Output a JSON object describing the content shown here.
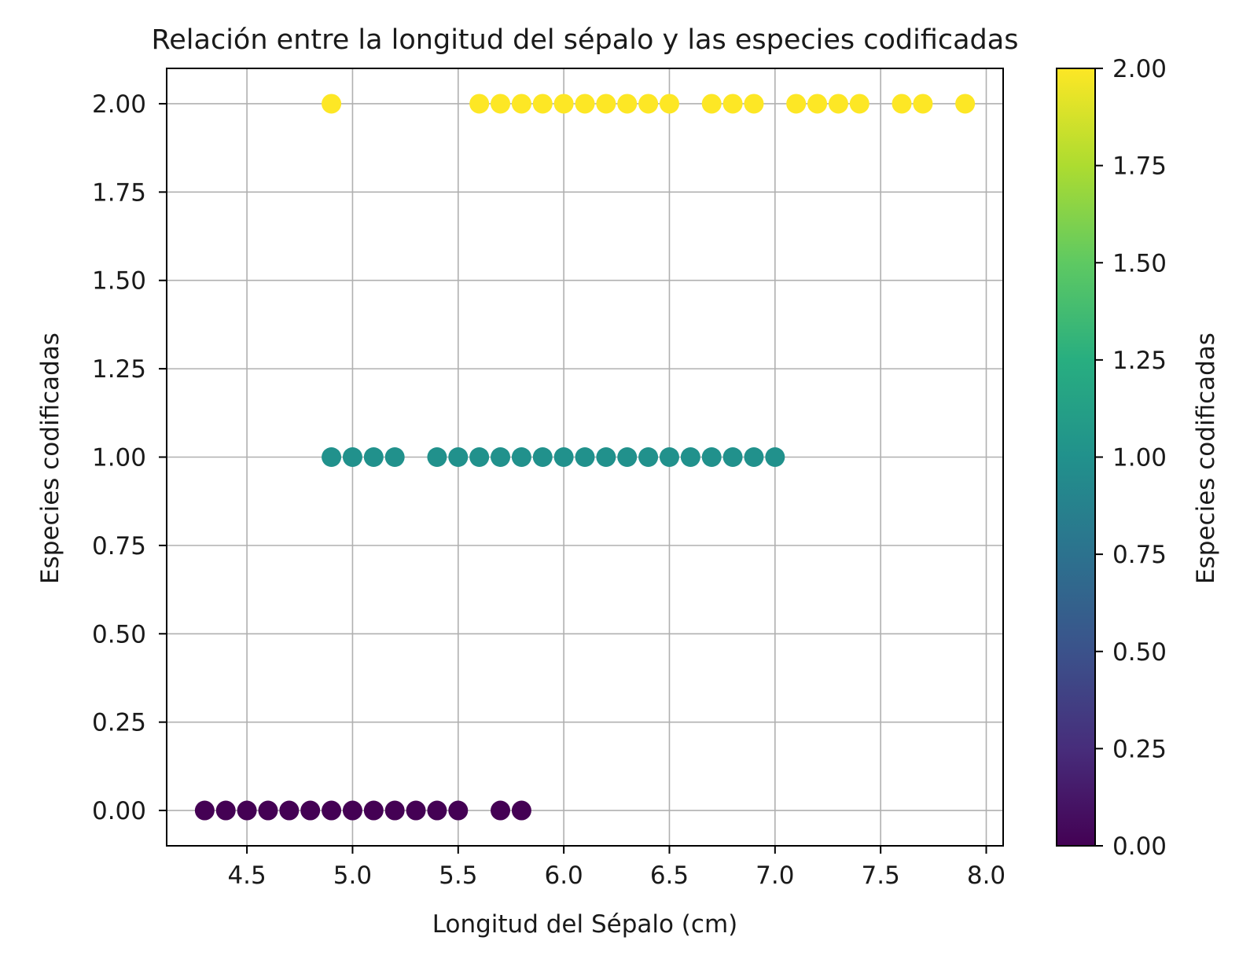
{
  "chart_data": {
    "type": "scatter",
    "title": "Relación entre la longitud del sépalo y las especies codificadas",
    "xlabel": "Longitud del Sépalo (cm)",
    "ylabel": "Especies codificadas",
    "xlim": [
      4.12,
      8.08
    ],
    "ylim": [
      -0.1,
      2.1
    ],
    "xticks": [
      "4.5",
      "5.0",
      "5.5",
      "6.0",
      "6.5",
      "7.0",
      "7.5",
      "8.0"
    ],
    "yticks": [
      "0.00",
      "0.25",
      "0.50",
      "0.75",
      "1.00",
      "1.25",
      "1.50",
      "1.75",
      "2.00"
    ],
    "grid": true,
    "colormap": "viridis",
    "colorbar": {
      "label": "Especies codificadas",
      "range": [
        0,
        2
      ],
      "ticks": [
        "0.00",
        "0.25",
        "0.50",
        "0.75",
        "1.00",
        "1.25",
        "1.50",
        "1.75",
        "2.00"
      ]
    },
    "series": [
      {
        "y": 0,
        "color": "#440154",
        "x": [
          4.3,
          4.4,
          4.5,
          4.6,
          4.7,
          4.8,
          4.9,
          5.0,
          5.1,
          5.2,
          5.3,
          5.4,
          5.5,
          5.7,
          5.8
        ]
      },
      {
        "y": 1,
        "color": "#21918c",
        "x": [
          4.9,
          5.0,
          5.1,
          5.2,
          5.4,
          5.5,
          5.6,
          5.7,
          5.8,
          5.9,
          6.0,
          6.1,
          6.2,
          6.3,
          6.4,
          6.5,
          6.6,
          6.7,
          6.8,
          6.9,
          7.0
        ]
      },
      {
        "y": 2,
        "color": "#fde725",
        "x": [
          4.9,
          5.6,
          5.7,
          5.8,
          5.9,
          6.0,
          6.1,
          6.2,
          6.3,
          6.4,
          6.5,
          6.7,
          6.8,
          6.9,
          7.1,
          7.2,
          7.3,
          7.4,
          7.6,
          7.7,
          7.9
        ]
      }
    ]
  }
}
